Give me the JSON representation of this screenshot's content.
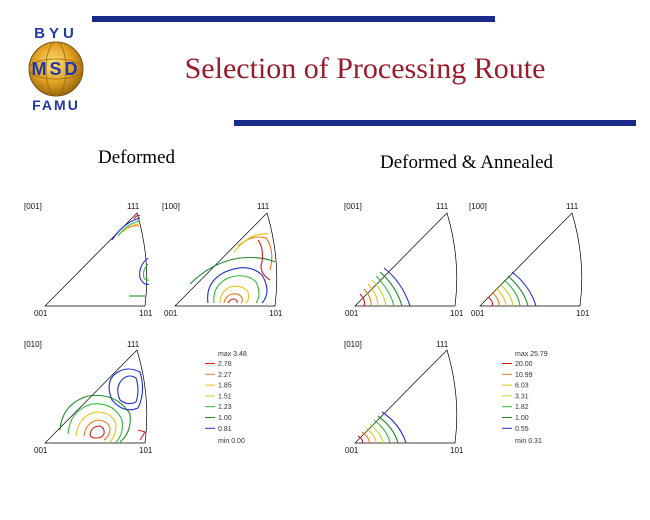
{
  "slide": {
    "title": "Selection of Processing Route",
    "logo": {
      "top": "BYU",
      "middle": "MSD",
      "bottom": "FAMU"
    },
    "sections": {
      "left": "Deformed",
      "right": "Deformed & Annealed"
    }
  },
  "figures": [
    {
      "direction": "[001]",
      "apex": "111",
      "left_corner": "001",
      "right_corner": "101"
    },
    {
      "direction": "[100]",
      "apex": "111",
      "left_corner": "001",
      "right_corner": "101"
    },
    {
      "direction": "[001]",
      "apex": "111",
      "left_corner": "001",
      "right_corner": "101"
    },
    {
      "direction": "[100]",
      "apex": "111",
      "left_corner": "001",
      "right_corner": "101"
    },
    {
      "direction": "[010]",
      "apex": "111",
      "left_corner": "001",
      "right_corner": "101"
    },
    {
      "direction": "[010]",
      "apex": "111",
      "left_corner": "001",
      "right_corner": "101"
    }
  ],
  "legends": [
    {
      "max": "max 3.48",
      "min": "min 0.00",
      "levels": [
        "2.78",
        "2.27",
        "1.85",
        "1.51",
        "1.23",
        "1.00",
        "0.81"
      ]
    },
    {
      "max": "max 25.79",
      "min": "min 0.31",
      "levels": [
        "20.00",
        "10.99",
        "6.03",
        "3.31",
        "1.82",
        "1.00",
        "0.55"
      ]
    }
  ],
  "contour_colors": [
    "#d42020",
    "#f07a1a",
    "#e8c419",
    "#b6d82a",
    "#32b83a",
    "#1a8a2c",
    "#1f2fd0"
  ]
}
